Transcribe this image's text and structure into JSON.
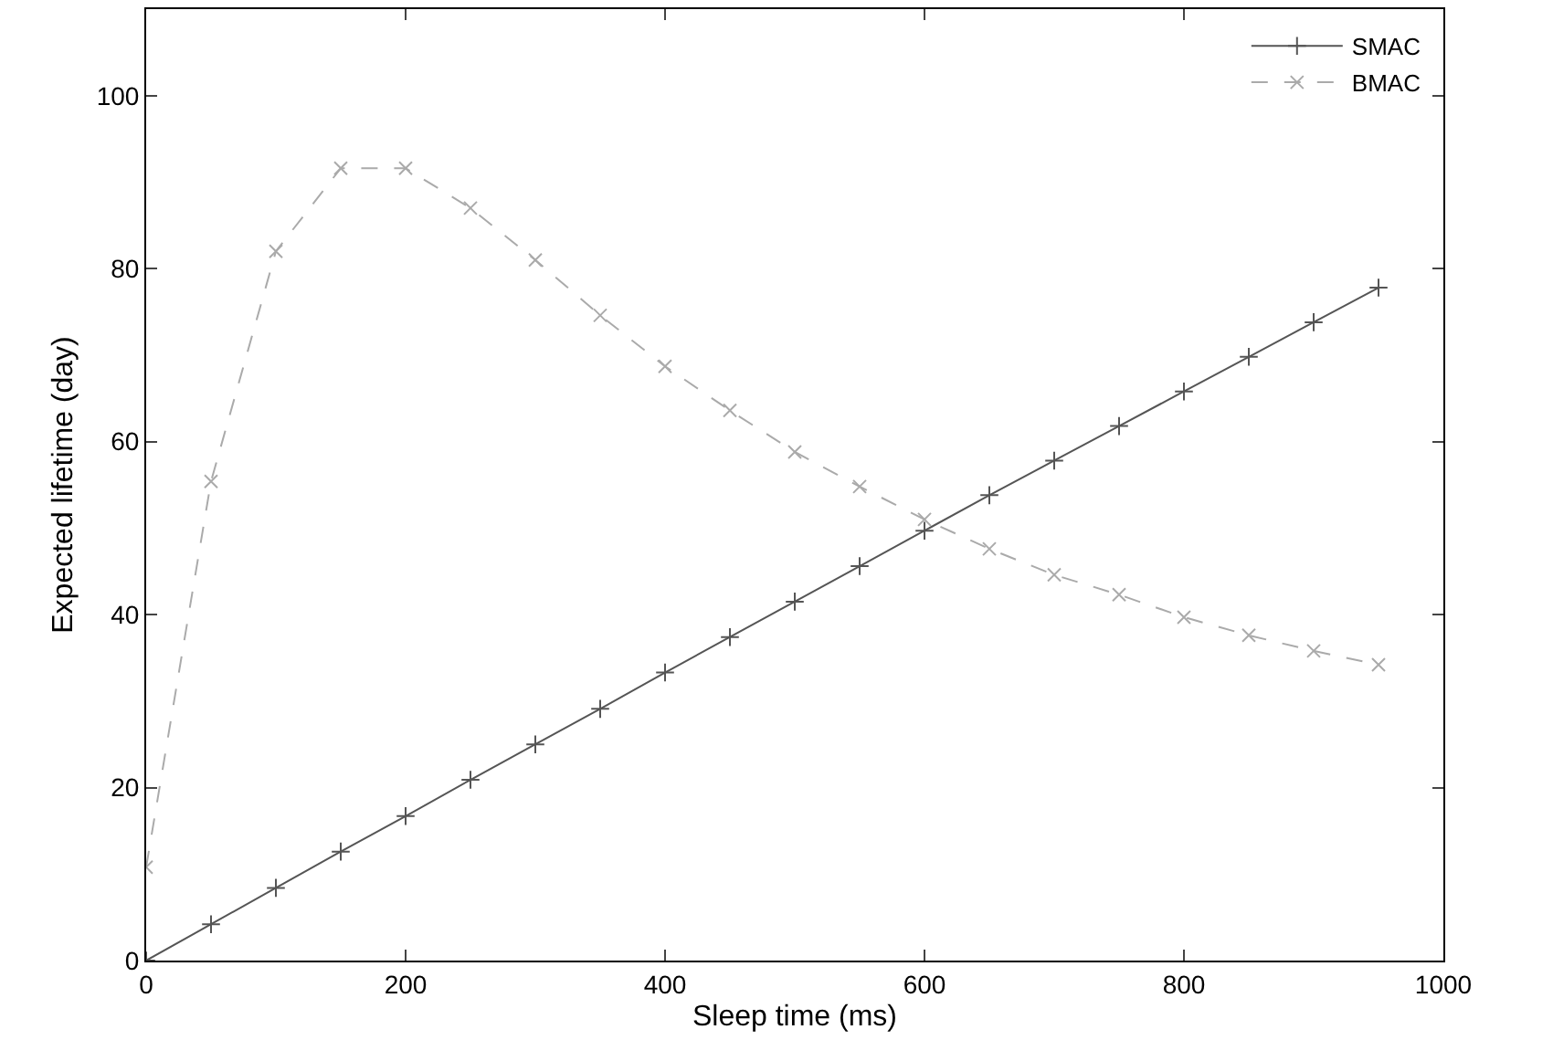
{
  "chart_data": {
    "type": "line",
    "xlabel": "Sleep time (ms)",
    "ylabel": "Expected lifetime (day)",
    "x": [
      0,
      50,
      100,
      150,
      200,
      250,
      300,
      350,
      400,
      450,
      500,
      550,
      600,
      650,
      700,
      750,
      800,
      850,
      900,
      950
    ],
    "series": [
      {
        "name": "SMAC",
        "color": "#555555",
        "marker": "cross",
        "line_style": "solid",
        "values": [
          0,
          4.2,
          8.4,
          12.6,
          16.7,
          20.9,
          25.0,
          29.1,
          33.3,
          37.4,
          41.5,
          45.6,
          49.7,
          53.8,
          57.8,
          61.8,
          65.8,
          69.8,
          73.8,
          77.8
        ]
      },
      {
        "name": "BMAC",
        "color": "#aaaaaa",
        "marker": "x",
        "line_style": "dashed",
        "values": [
          10.8,
          55.4,
          82,
          91.6,
          91.6,
          87,
          81,
          74.6,
          68.7,
          63.6,
          58.8,
          54.8,
          51,
          47.6,
          44.6,
          42.3,
          39.7,
          37.6,
          35.8,
          34.2
        ]
      }
    ],
    "xlim": [
      0,
      1000
    ],
    "xticks": [
      0,
      200,
      400,
      600,
      800,
      1000
    ],
    "ylim": [
      0,
      110
    ],
    "yticks": [
      0,
      20,
      40,
      60,
      80,
      100
    ],
    "legend": "top right"
  }
}
